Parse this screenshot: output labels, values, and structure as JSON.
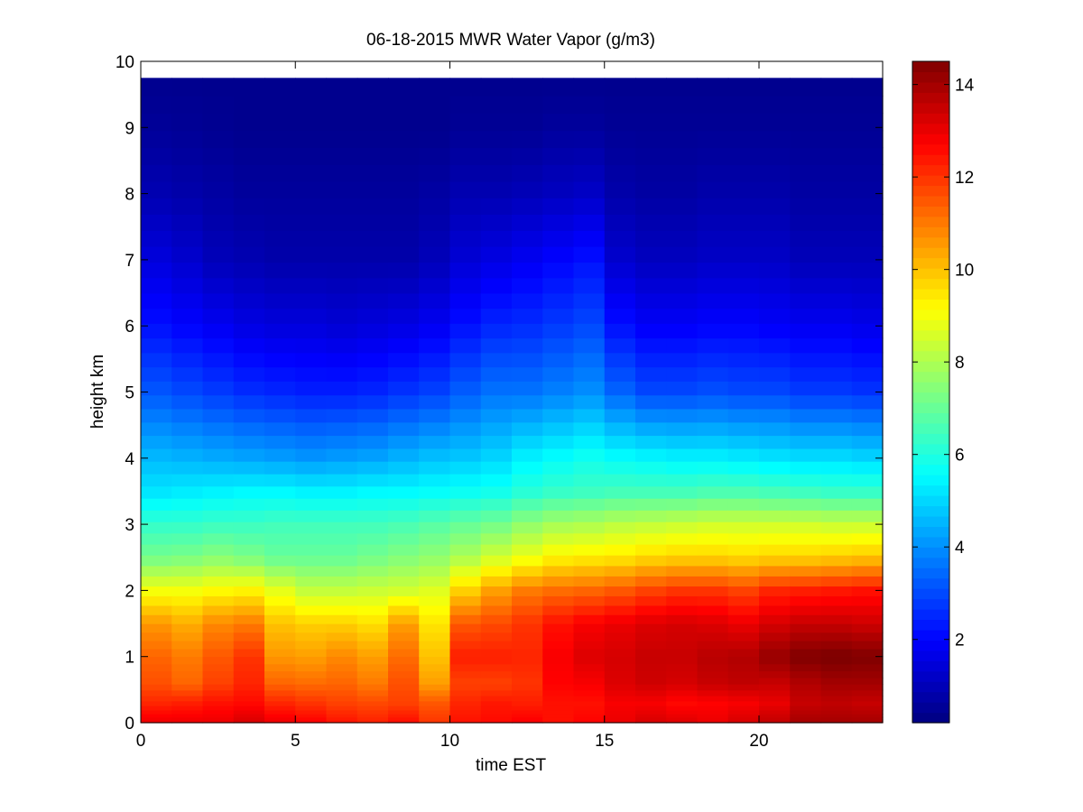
{
  "chart_data": {
    "type": "heatmap",
    "title": "06-18-2015 MWR Water Vapor (g/m3)",
    "xlabel": "time EST",
    "ylabel": "height km",
    "xlim": [
      0,
      24
    ],
    "ylim": [
      0,
      10
    ],
    "x_ticks": [
      "0",
      "5",
      "10",
      "15",
      "20"
    ],
    "y_ticks": [
      "0",
      "1",
      "2",
      "3",
      "4",
      "5",
      "6",
      "7",
      "8",
      "9",
      "10"
    ],
    "colorbar": {
      "clim": [
        0.2,
        14.5
      ],
      "ticks": [
        "2",
        "4",
        "6",
        "8",
        "10",
        "12",
        "14"
      ],
      "colormap": "jet"
    },
    "time_hours": [
      0.5,
      1.5,
      2.5,
      3.5,
      4.5,
      5.5,
      6.5,
      7.5,
      8.5,
      9.5,
      10.5,
      11.5,
      12.5,
      13.5,
      14.5,
      15.5,
      16.5,
      17.5,
      18.5,
      19.5,
      20.5,
      21.5,
      22.5,
      23.5
    ],
    "height_km": [
      0,
      0.3,
      0.6,
      1.0,
      1.5,
      2.0,
      2.5,
      3.0,
      3.5,
      4.0,
      5.0,
      6.0,
      7.0,
      8.0,
      9.0,
      9.75
    ],
    "series": [
      {
        "time": 0.5,
        "vapor": [
          13.0,
          12.2,
          11.6,
          11.3,
          10.6,
          9.0,
          7.2,
          6.3,
          5.2,
          4.6,
          3.2,
          2.2,
          1.5,
          0.9,
          0.55,
          0.4
        ]
      },
      {
        "time": 1.5,
        "vapor": [
          13.0,
          12.3,
          11.3,
          11.0,
          10.3,
          9.0,
          7.3,
          6.3,
          5.3,
          4.5,
          3.0,
          2.0,
          1.3,
          0.8,
          0.5,
          0.4
        ]
      },
      {
        "time": 2.5,
        "vapor": [
          13.0,
          12.5,
          11.8,
          11.5,
          10.8,
          9.2,
          7.5,
          6.4,
          5.4,
          4.4,
          2.8,
          1.8,
          1.0,
          0.7,
          0.45,
          0.4
        ]
      },
      {
        "time": 3.5,
        "vapor": [
          13.3,
          12.6,
          12.2,
          12.0,
          11.0,
          9.3,
          7.3,
          6.4,
          5.5,
          4.3,
          2.6,
          1.6,
          0.9,
          0.6,
          0.4,
          0.4
        ]
      },
      {
        "time": 4.5,
        "vapor": [
          13.0,
          12.2,
          11.3,
          10.6,
          10.0,
          8.8,
          7.0,
          6.5,
          5.5,
          4.2,
          2.5,
          1.5,
          0.8,
          0.6,
          0.4,
          0.4
        ]
      },
      {
        "time": 5.5,
        "vapor": [
          12.8,
          12.0,
          11.2,
          10.5,
          9.8,
          8.3,
          7.0,
          6.5,
          5.4,
          4.1,
          2.4,
          1.5,
          0.8,
          0.6,
          0.4,
          0.4
        ]
      },
      {
        "time": 6.5,
        "vapor": [
          12.5,
          11.8,
          11.3,
          10.8,
          9.8,
          8.3,
          7.0,
          6.5,
          5.4,
          4.2,
          2.4,
          1.4,
          0.8,
          0.6,
          0.4,
          0.4
        ]
      },
      {
        "time": 7.5,
        "vapor": [
          12.3,
          11.7,
          11.0,
          10.5,
          9.6,
          8.4,
          7.2,
          6.5,
          5.5,
          4.3,
          2.5,
          1.5,
          0.8,
          0.6,
          0.4,
          0.4
        ]
      },
      {
        "time": 8.5,
        "vapor": [
          12.6,
          11.8,
          11.6,
          11.2,
          10.5,
          8.5,
          7.4,
          6.6,
          5.5,
          4.5,
          2.7,
          1.6,
          0.8,
          0.6,
          0.4,
          0.4
        ]
      },
      {
        "time": 9.5,
        "vapor": [
          12.0,
          11.5,
          10.5,
          10.0,
          9.5,
          8.7,
          7.6,
          6.8,
          5.6,
          4.7,
          2.9,
          1.8,
          1.0,
          0.7,
          0.4,
          0.4
        ]
      },
      {
        "time": 10.5,
        "vapor": [
          12.5,
          12.2,
          11.8,
          12.3,
          11.5,
          9.8,
          8.0,
          7.0,
          5.7,
          4.8,
          3.3,
          2.2,
          1.4,
          0.9,
          0.5,
          0.4
        ]
      },
      {
        "time": 11.5,
        "vapor": [
          12.6,
          12.4,
          11.8,
          12.3,
          11.7,
          10.5,
          8.5,
          7.2,
          5.8,
          5.0,
          3.6,
          2.5,
          1.6,
          0.9,
          0.5,
          0.4
        ]
      },
      {
        "time": 12.5,
        "vapor": [
          12.8,
          12.3,
          12.0,
          12.2,
          12.0,
          11.0,
          8.9,
          7.6,
          6.1,
          5.4,
          3.6,
          2.6,
          1.8,
          1.0,
          0.5,
          0.4
        ]
      },
      {
        "time": 13.5,
        "vapor": [
          12.5,
          12.5,
          12.7,
          12.8,
          12.5,
          11.2,
          9.3,
          7.9,
          6.3,
          5.6,
          3.8,
          2.8,
          2.0,
          1.1,
          0.6,
          0.4
        ]
      },
      {
        "time": 14.5,
        "vapor": [
          12.7,
          12.5,
          12.8,
          13.2,
          12.8,
          11.3,
          9.4,
          8.0,
          6.4,
          5.8,
          4.0,
          3.0,
          2.2,
          1.2,
          0.6,
          0.4
        ]
      },
      {
        "time": 15.5,
        "vapor": [
          13.0,
          12.8,
          13.2,
          13.3,
          13.0,
          11.5,
          9.5,
          8.2,
          6.5,
          5.6,
          3.4,
          2.2,
          1.3,
          0.8,
          0.5,
          0.4
        ]
      },
      {
        "time": 16.5,
        "vapor": [
          13.3,
          12.8,
          13.4,
          13.5,
          13.2,
          11.8,
          9.7,
          8.3,
          6.5,
          5.5,
          3.0,
          1.9,
          1.1,
          0.7,
          0.5,
          0.4
        ]
      },
      {
        "time": 17.5,
        "vapor": [
          13.2,
          12.6,
          13.3,
          13.5,
          13.3,
          12.0,
          9.8,
          8.4,
          6.5,
          5.4,
          3.0,
          1.9,
          1.1,
          0.7,
          0.5,
          0.4
        ]
      },
      {
        "time": 18.5,
        "vapor": [
          13.0,
          12.7,
          13.5,
          13.7,
          13.2,
          12.0,
          9.8,
          8.5,
          6.6,
          5.4,
          3.1,
          2.0,
          1.2,
          0.8,
          0.5,
          0.4
        ]
      },
      {
        "time": 19.5,
        "vapor": [
          13.3,
          12.8,
          13.6,
          13.8,
          13.0,
          11.8,
          9.7,
          8.5,
          6.6,
          5.3,
          3.0,
          2.0,
          1.2,
          0.8,
          0.5,
          0.4
        ]
      },
      {
        "time": 20.5,
        "vapor": [
          13.6,
          13.0,
          13.5,
          14.2,
          13.3,
          12.2,
          9.8,
          8.5,
          6.5,
          5.2,
          3.0,
          1.9,
          1.2,
          0.8,
          0.5,
          0.4
        ]
      },
      {
        "time": 21.5,
        "vapor": [
          14.0,
          13.5,
          13.8,
          14.5,
          13.5,
          12.3,
          9.8,
          8.5,
          6.4,
          5.1,
          2.8,
          1.8,
          1.0,
          0.7,
          0.5,
          0.4
        ]
      },
      {
        "time": 22.5,
        "vapor": [
          14.0,
          13.6,
          14.0,
          14.6,
          13.5,
          12.4,
          9.9,
          8.4,
          6.3,
          5.1,
          2.8,
          1.8,
          1.0,
          0.7,
          0.5,
          0.4
        ]
      },
      {
        "time": 23.5,
        "vapor": [
          14.0,
          13.5,
          14.0,
          14.5,
          13.4,
          12.5,
          10.0,
          8.4,
          6.3,
          5.0,
          2.7,
          1.7,
          1.0,
          0.7,
          0.5,
          0.4
        ]
      }
    ]
  }
}
